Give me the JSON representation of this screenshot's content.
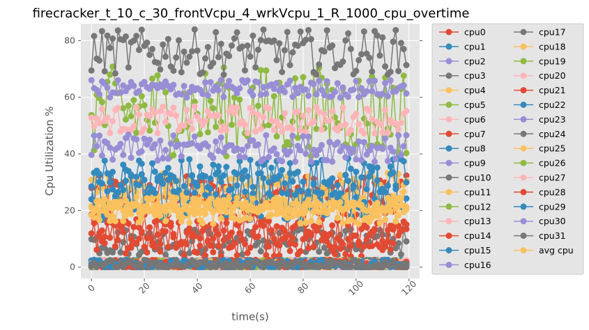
{
  "chart_data": {
    "type": "line",
    "title": "firecracker_t_10_c_30_frontVcpu_4_wrkVcpu_1_R_1000_cpu_overtime",
    "xlabel": "time(s)",
    "ylabel": "Cpu Utilization %",
    "xlim": [
      -4,
      124
    ],
    "ylim": [
      -4,
      86
    ],
    "x_ticks": [
      0,
      20,
      40,
      60,
      80,
      100,
      120
    ],
    "y_ticks": [
      0,
      20,
      40,
      60,
      80
    ],
    "grid": true,
    "legend_position": "outside-right",
    "x": {
      "start": 0,
      "end": 119,
      "step": 1
    },
    "palette": [
      "#E24A33",
      "#348ABD",
      "#988ED5",
      "#777777",
      "#FBC15E",
      "#8EBA42",
      "#FFB5B8"
    ],
    "series": [
      {
        "name": "cpu0",
        "color": "#E24A33",
        "mean": 26,
        "spread": 4
      },
      {
        "name": "cpu1",
        "color": "#348ABD",
        "mean": 0.5,
        "spread": 0.8
      },
      {
        "name": "cpu2",
        "color": "#988ED5",
        "mean": 1,
        "spread": 1
      },
      {
        "name": "cpu3",
        "color": "#777777",
        "mean": 9,
        "spread": 3
      },
      {
        "name": "cpu4",
        "color": "#FBC15E",
        "mean": 27,
        "spread": 4
      },
      {
        "name": "cpu5",
        "color": "#8EBA42",
        "mean": 1,
        "spread": 1
      },
      {
        "name": "cpu6",
        "color": "#FFB5B8",
        "mean": 1,
        "spread": 1
      },
      {
        "name": "cpu7",
        "color": "#E24A33",
        "mean": 13,
        "spread": 4
      },
      {
        "name": "cpu8",
        "color": "#348ABD",
        "mean": 31,
        "spread": 5
      },
      {
        "name": "cpu9",
        "color": "#988ED5",
        "mean": 1,
        "spread": 1
      },
      {
        "name": "cpu10",
        "color": "#777777",
        "mean": 1,
        "spread": 1
      },
      {
        "name": "cpu11",
        "color": "#FBC15E",
        "mean": 22,
        "spread": 3
      },
      {
        "name": "cpu12",
        "color": "#8EBA42",
        "mean": 55,
        "spread": 10
      },
      {
        "name": "cpu13",
        "color": "#FFB5B8",
        "mean": 52,
        "spread": 3
      },
      {
        "name": "cpu14",
        "color": "#E24A33",
        "mean": 10,
        "spread": 4
      },
      {
        "name": "cpu15",
        "color": "#348ABD",
        "mean": 26,
        "spread": 6
      },
      {
        "name": "cpu16",
        "color": "#988ED5",
        "mean": 1,
        "spread": 1
      },
      {
        "name": "cpu17",
        "color": "#777777",
        "mean": 76,
        "spread": 5
      },
      {
        "name": "cpu18",
        "color": "#FBC15E",
        "mean": 20,
        "spread": 3
      },
      {
        "name": "cpu19",
        "color": "#8EBA42",
        "mean": 1,
        "spread": 1
      },
      {
        "name": "cpu20",
        "color": "#FFB5B8",
        "mean": 1,
        "spread": 1
      },
      {
        "name": "cpu21",
        "color": "#E24A33",
        "mean": 1,
        "spread": 1
      },
      {
        "name": "cpu22",
        "color": "#348ABD",
        "mean": 1,
        "spread": 1
      },
      {
        "name": "cpu23",
        "color": "#988ED5",
        "mean": 42,
        "spread": 3
      },
      {
        "name": "cpu24",
        "color": "#777777",
        "mean": 1,
        "spread": 1
      },
      {
        "name": "cpu25",
        "color": "#FBC15E",
        "mean": 1,
        "spread": 1
      },
      {
        "name": "cpu26",
        "color": "#8EBA42",
        "mean": 1,
        "spread": 1
      },
      {
        "name": "cpu27",
        "color": "#FFB5B8",
        "mean": 1,
        "spread": 1
      },
      {
        "name": "cpu28",
        "color": "#E24A33",
        "mean": 1,
        "spread": 1
      },
      {
        "name": "cpu29",
        "color": "#348ABD",
        "mean": 1,
        "spread": 1
      },
      {
        "name": "cpu30",
        "color": "#988ED5",
        "mean": 63,
        "spread": 2
      },
      {
        "name": "cpu31",
        "color": "#777777",
        "mean": 1,
        "spread": 1
      },
      {
        "name": "avg cpu",
        "color": "#FBC15E",
        "mean": 21,
        "spread": 1
      }
    ]
  }
}
